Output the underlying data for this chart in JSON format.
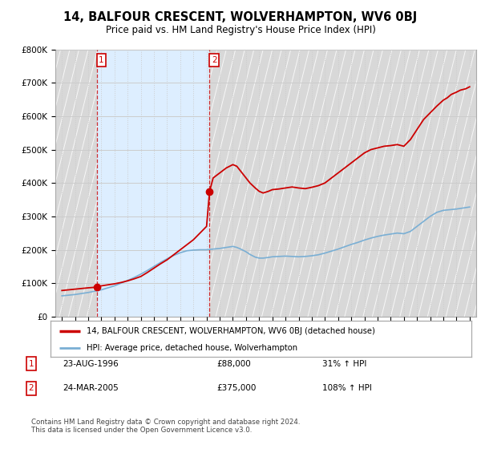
{
  "title": "14, BALFOUR CRESCENT, WOLVERHAMPTON, WV6 0BJ",
  "subtitle": "Price paid vs. HM Land Registry's House Price Index (HPI)",
  "legend_label_red": "14, BALFOUR CRESCENT, WOLVERHAMPTON, WV6 0BJ (detached house)",
  "legend_label_blue": "HPI: Average price, detached house, Wolverhampton",
  "annotation_text": "Contains HM Land Registry data © Crown copyright and database right 2024.\nThis data is licensed under the Open Government Licence v3.0.",
  "table_rows": [
    {
      "num": "1",
      "date": "23-AUG-1996",
      "price": "£88,000",
      "hpi": "31% ↑ HPI"
    },
    {
      "num": "2",
      "date": "24-MAR-2005",
      "price": "£375,000",
      "hpi": "108% ↑ HPI"
    }
  ],
  "sale1_x": 1996.65,
  "sale1_y": 88000,
  "sale2_x": 2005.23,
  "sale2_y": 375000,
  "ylim": [
    0,
    800000
  ],
  "yticks": [
    0,
    100000,
    200000,
    300000,
    400000,
    500000,
    600000,
    700000,
    800000
  ],
  "ytick_labels": [
    "£0",
    "£100K",
    "£200K",
    "£300K",
    "£400K",
    "£500K",
    "£600K",
    "£700K",
    "£800K"
  ],
  "xlim": [
    1993.5,
    2025.5
  ],
  "xticks": [
    1994,
    1995,
    1996,
    1997,
    1998,
    1999,
    2000,
    2001,
    2002,
    2003,
    2004,
    2005,
    2006,
    2007,
    2008,
    2009,
    2010,
    2011,
    2012,
    2013,
    2014,
    2015,
    2016,
    2017,
    2018,
    2019,
    2020,
    2021,
    2022,
    2023,
    2024,
    2025
  ],
  "red_color": "#cc0000",
  "blue_color": "#7aafd4",
  "grid_color": "#cccccc",
  "hatch_bg_color": "#d8d8d8",
  "blue_fill_color": "#ddeeff",
  "bg_color": "#ffffff",
  "title_fontsize": 11,
  "subtitle_fontsize": 9,
  "axis_fontsize": 7.5,
  "red_line_data_x": [
    1994.0,
    1994.5,
    1995.0,
    1995.5,
    1996.0,
    1996.65,
    1997.0,
    1997.5,
    1998.0,
    1998.5,
    1999.0,
    1999.5,
    2000.0,
    2000.5,
    2001.0,
    2001.5,
    2002.0,
    2002.5,
    2003.0,
    2003.5,
    2004.0,
    2004.5,
    2005.0,
    2005.23,
    2005.5,
    2006.0,
    2006.5,
    2007.0,
    2007.3,
    2007.5,
    2007.7,
    2008.0,
    2008.3,
    2008.7,
    2009.0,
    2009.3,
    2009.7,
    2010.0,
    2010.5,
    2011.0,
    2011.5,
    2012.0,
    2012.5,
    2013.0,
    2013.5,
    2014.0,
    2014.5,
    2015.0,
    2015.5,
    2016.0,
    2016.5,
    2017.0,
    2017.5,
    2018.0,
    2018.5,
    2019.0,
    2019.5,
    2020.0,
    2020.5,
    2021.0,
    2021.5,
    2022.0,
    2022.5,
    2023.0,
    2023.3,
    2023.6,
    2024.0,
    2024.3,
    2024.7,
    2025.0
  ],
  "red_line_data_y": [
    78000,
    80000,
    82000,
    84000,
    86000,
    88000,
    92000,
    95000,
    98000,
    102000,
    107000,
    113000,
    120000,
    132000,
    145000,
    158000,
    170000,
    185000,
    200000,
    215000,
    230000,
    250000,
    270000,
    375000,
    415000,
    430000,
    445000,
    455000,
    450000,
    440000,
    430000,
    415000,
    400000,
    385000,
    375000,
    370000,
    375000,
    380000,
    382000,
    385000,
    388000,
    385000,
    383000,
    387000,
    392000,
    400000,
    415000,
    430000,
    445000,
    460000,
    475000,
    490000,
    500000,
    505000,
    510000,
    512000,
    515000,
    510000,
    530000,
    560000,
    590000,
    610000,
    630000,
    648000,
    655000,
    665000,
    672000,
    678000,
    682000,
    688000
  ],
  "blue_line_data_x": [
    1994.0,
    1994.5,
    1995.0,
    1995.5,
    1996.0,
    1996.5,
    1997.0,
    1997.5,
    1998.0,
    1998.5,
    1999.0,
    1999.5,
    2000.0,
    2000.5,
    2001.0,
    2001.5,
    2002.0,
    2002.5,
    2003.0,
    2003.5,
    2004.0,
    2004.5,
    2005.0,
    2005.5,
    2006.0,
    2006.5,
    2007.0,
    2007.3,
    2007.6,
    2008.0,
    2008.3,
    2008.7,
    2009.0,
    2009.3,
    2009.7,
    2010.0,
    2010.5,
    2011.0,
    2011.5,
    2012.0,
    2012.5,
    2013.0,
    2013.5,
    2014.0,
    2014.5,
    2015.0,
    2015.5,
    2016.0,
    2016.5,
    2017.0,
    2017.5,
    2018.0,
    2018.5,
    2019.0,
    2019.5,
    2020.0,
    2020.5,
    2021.0,
    2021.5,
    2022.0,
    2022.5,
    2023.0,
    2023.5,
    2024.0,
    2024.5,
    2025.0
  ],
  "blue_line_data_y": [
    62000,
    64000,
    66000,
    69000,
    72000,
    76000,
    80000,
    86000,
    92000,
    100000,
    108000,
    117000,
    127000,
    138000,
    150000,
    162000,
    173000,
    183000,
    191000,
    197000,
    199000,
    200000,
    200000,
    202000,
    204000,
    207000,
    210000,
    207000,
    202000,
    194000,
    186000,
    178000,
    175000,
    175000,
    177000,
    179000,
    180000,
    181000,
    180000,
    179000,
    180000,
    182000,
    185000,
    190000,
    196000,
    202000,
    209000,
    216000,
    222000,
    229000,
    235000,
    240000,
    244000,
    247000,
    250000,
    248000,
    255000,
    270000,
    285000,
    300000,
    312000,
    318000,
    320000,
    322000,
    325000,
    328000
  ]
}
